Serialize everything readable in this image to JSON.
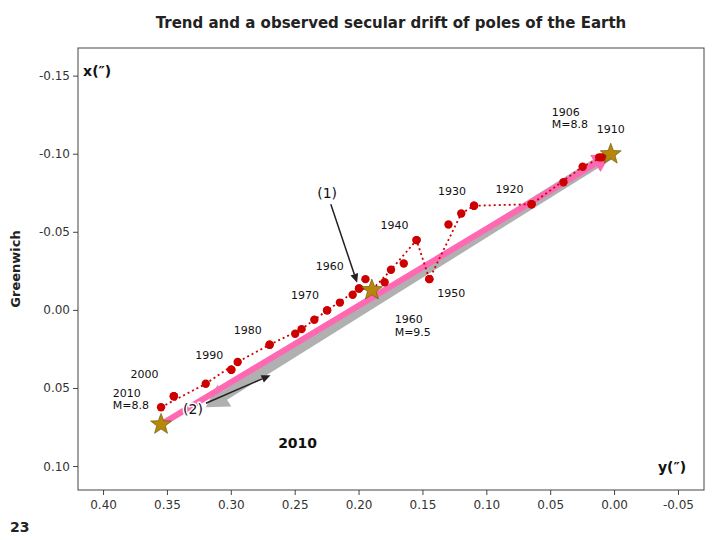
{
  "chart_data": {
    "type": "scatter",
    "title": "Trend and a observed secular drift of poles of the Earth",
    "ylabel": "Greenwich",
    "xlim": [
      0.42,
      -0.07
    ],
    "ylim": [
      0.115,
      -0.168
    ],
    "xticks": [
      {
        "value": 0.4,
        "label": "0.40"
      },
      0.35,
      {
        "value": 0.3,
        "label": "0.30"
      },
      0.25,
      {
        "value": 0.2,
        "label": "0.20"
      },
      0.15,
      {
        "value": 0.1,
        "label": "0.10"
      },
      0.05,
      {
        "value": 0,
        "label": "0.00"
      },
      -0.05
    ],
    "yticks": [
      -0.15,
      {
        "value": -0.1,
        "label": "-0.10"
      },
      -0.05,
      {
        "value": 0,
        "label": "0.00"
      },
      0.05,
      {
        "value": 0.1,
        "label": "0.10"
      }
    ],
    "grid": false,
    "series": [
      {
        "type": "arrow",
        "color": "#b0b0b0",
        "x": [
          0.003,
          0.32
        ],
        "values": [
          -0.1,
          0.062
        ]
      },
      {
        "type": "arrow",
        "color": "#ff69b4",
        "x": [
          0.355,
          0.003
        ],
        "values": [
          0.073,
          -0.1
        ]
      },
      {
        "type": "line",
        "line_style": "dotted",
        "color": "#cc0000",
        "x": [
          0.355,
          0.32,
          0.295,
          0.27,
          0.245,
          0.225,
          0.2,
          0.19,
          0.175,
          0.155,
          0.145,
          0.12,
          0.11,
          0.065,
          0.025,
          0.01,
          0.003
        ],
        "values": [
          0.062,
          0.047,
          0.033,
          0.022,
          0.012,
          0.0,
          -0.014,
          -0.013,
          -0.026,
          -0.045,
          -0.02,
          -0.062,
          -0.067,
          -0.068,
          -0.092,
          -0.098,
          -0.1
        ]
      },
      {
        "type": "scatter",
        "marker": "circle",
        "color": "#cc0000",
        "x": [
          0.355,
          0.345,
          0.32,
          0.3,
          0.295,
          0.27,
          0.25,
          0.245,
          0.235,
          0.225,
          0.215,
          0.205,
          0.2,
          0.195,
          0.19,
          0.18,
          0.175,
          0.165,
          0.155,
          0.145,
          0.13,
          0.12,
          0.11,
          0.065,
          0.04,
          0.025,
          0.012,
          0.01,
          0.003
        ],
        "values": [
          0.062,
          0.055,
          0.047,
          0.038,
          0.033,
          0.022,
          0.015,
          0.012,
          0.006,
          0.0,
          -0.005,
          -0.01,
          -0.014,
          -0.02,
          -0.013,
          -0.018,
          -0.026,
          -0.03,
          -0.045,
          -0.02,
          -0.055,
          -0.062,
          -0.067,
          -0.068,
          -0.082,
          -0.092,
          -0.098,
          -0.098,
          -0.1
        ]
      },
      {
        "type": "scatter",
        "marker": "circle",
        "color": "#cc0000",
        "x": [
          0.003,
          0.065,
          0.11,
          0.155,
          0.145,
          0.2,
          0.225,
          0.27,
          0.3,
          0.345
        ],
        "values": [
          -0.1,
          -0.068,
          -0.067,
          -0.045,
          -0.02,
          -0.014,
          0.0,
          0.022,
          0.038,
          0.055
        ],
        "labels": [
          "1910",
          "1920",
          "1930",
          "1940",
          "1950",
          "1960",
          "1970",
          "1980",
          "1990",
          "2000"
        ]
      },
      {
        "type": "scatter",
        "marker": "star",
        "color": "#b8860b",
        "x": [
          0.003,
          0.19,
          0.355
        ],
        "values": [
          -0.1,
          -0.013,
          0.073
        ],
        "labels": [
          "1906\nM=8.8",
          "1960\nM=9.5",
          "2010\nM=8.8"
        ]
      }
    ],
    "annotations": [
      {
        "text": "x(″)",
        "x": 0.405,
        "y": -0.153
      },
      {
        "text": "y(″)",
        "x": -0.045,
        "y": 0.1
      },
      {
        "text": "(1)",
        "x": 0.225,
        "y": -0.075,
        "arrow_to": [
          0.2,
          -0.014
        ]
      },
      {
        "text": "(2)",
        "x": 0.33,
        "y": 0.063,
        "arrow_to": [
          0.265,
          0.04
        ]
      },
      {
        "text": "2010",
        "x": 0.248,
        "y": 0.085
      }
    ],
    "note": "23"
  }
}
